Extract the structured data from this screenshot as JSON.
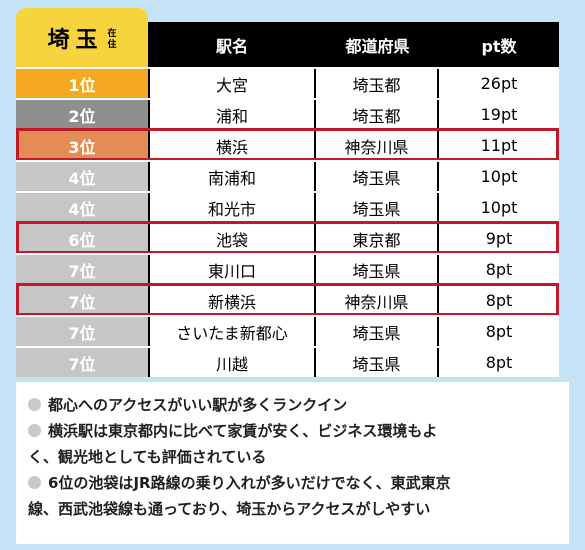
{
  "colors": {
    "rank1": "#f7a823",
    "rank2": "#8f8f8f",
    "rank3": "#e38d55",
    "rank_other": "#c6c6c6",
    "header_tag": "#f7d33d",
    "highlight": "#c0192a",
    "background": "#c5e3f6"
  },
  "header": {
    "prefecture": "埼玉",
    "suffix_chars": [
      "在",
      "住"
    ],
    "col_station": "駅名",
    "col_pref": "都道府県",
    "col_points": "pt数"
  },
  "rows": [
    {
      "rank": "1位",
      "station": "大宮",
      "pref": "埼玉都",
      "points": "26pt",
      "highlighted": false
    },
    {
      "rank": "2位",
      "station": "浦和",
      "pref": "埼玉都",
      "points": "19pt",
      "highlighted": false
    },
    {
      "rank": "3位",
      "station": "横浜",
      "pref": "神奈川県",
      "points": "11pt",
      "highlighted": true
    },
    {
      "rank": "4位",
      "station": "南浦和",
      "pref": "埼玉県",
      "points": "10pt",
      "highlighted": false
    },
    {
      "rank": "4位",
      "station": "和光市",
      "pref": "埼玉県",
      "points": "10pt",
      "highlighted": false
    },
    {
      "rank": "6位",
      "station": "池袋",
      "pref": "東京都",
      "points": "9pt",
      "highlighted": true
    },
    {
      "rank": "7位",
      "station": "東川口",
      "pref": "埼玉県",
      "points": "8pt",
      "highlighted": false
    },
    {
      "rank": "7位",
      "station": "新横浜",
      "pref": "神奈川県",
      "points": "8pt",
      "highlighted": true
    },
    {
      "rank": "7位",
      "station": "さいたま新都心",
      "pref": "埼玉県",
      "points": "8pt",
      "highlighted": false
    },
    {
      "rank": "7位",
      "station": "川越",
      "pref": "埼玉県",
      "points": "8pt",
      "highlighted": false
    }
  ],
  "notes": [
    "都心へのアクセスがいい駅が多くランクイン",
    "横浜駅は東京都内に比べて家賃が安く、ビジネス環境もよ",
    "く、観光地としても評価されている",
    "6位の池袋はJR路線の乗り入れが多いだけでなく、東武東京",
    "線、西武池袋線も通っており、埼玉からアクセスがしやすい"
  ],
  "note_bullets": [
    true,
    true,
    false,
    true,
    false
  ]
}
